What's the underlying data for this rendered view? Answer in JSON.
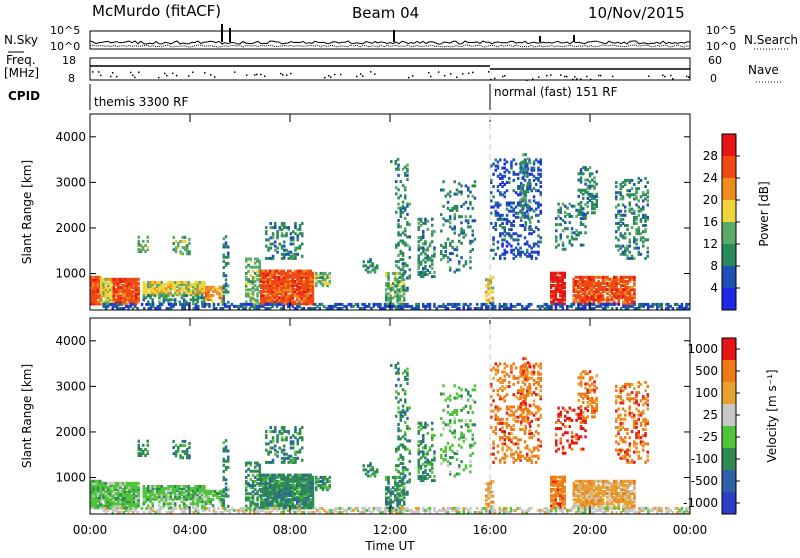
{
  "header": {
    "station": "McMurdo (fitACF)",
    "beam": "Beam 04",
    "date": "10/Nov/2015"
  },
  "strip_labels": {
    "nsky": "N.Sky",
    "nsearch": "N.Search",
    "freq_line1": "Freq.",
    "freq_line2": "[MHz]",
    "nave": "Nave",
    "cpid": "CPID",
    "nsky_ticks": [
      "10^5",
      "10^0"
    ],
    "nsearch_ticks": [
      "10^5",
      "10^0"
    ],
    "freq_ticks": [
      "18",
      "8"
    ],
    "nave_ticks": [
      "60",
      "0"
    ]
  },
  "cpid_modes": [
    {
      "label": "themis 3300 RF",
      "start_hour": 0
    },
    {
      "label": "normal (fast) 151 RF",
      "start_hour": 16
    }
  ],
  "chart_data": [
    {
      "type": "heatmap",
      "ylabel": "Slant Range [km]",
      "xlabel": "Time UT",
      "ylim": [
        200,
        4500
      ],
      "yticks": [
        "1000",
        "2000",
        "3000",
        "4000"
      ],
      "xticks": [
        "00:00",
        "04:00",
        "08:00",
        "12:00",
        "16:00",
        "20:00",
        "00:00"
      ],
      "colorbar": {
        "label": "Power [dB]",
        "range": [
          0,
          32
        ],
        "ticks": [
          "4",
          "8",
          "12",
          "16",
          "20",
          "24",
          "28"
        ],
        "colors": [
          "#1e28e6",
          "#1e50b4",
          "#2a8a5a",
          "#5aa86a",
          "#f0d43c",
          "#f08c1e",
          "#f04a14",
          "#e61414"
        ]
      }
    },
    {
      "type": "heatmap",
      "ylabel": "Slant Range [km]",
      "xlabel": "Time UT",
      "ylim": [
        200,
        4500
      ],
      "yticks": [
        "1000",
        "2000",
        "3000",
        "4000"
      ],
      "xticks": [
        "00:00",
        "04:00",
        "08:00",
        "12:00",
        "16:00",
        "20:00",
        "00:00"
      ],
      "colorbar": {
        "label": "Velocity [m s⁻¹]",
        "ticks": [
          "1000",
          "500",
          "100",
          "25",
          "-25",
          "-100",
          "-500",
          "-1000"
        ],
        "colors": [
          "#2d3dc6",
          "#2e61a8",
          "#2e8a52",
          "#52c43c",
          "#c8c8c8",
          "#e6a030",
          "#f07a14",
          "#e61414"
        ]
      }
    }
  ]
}
